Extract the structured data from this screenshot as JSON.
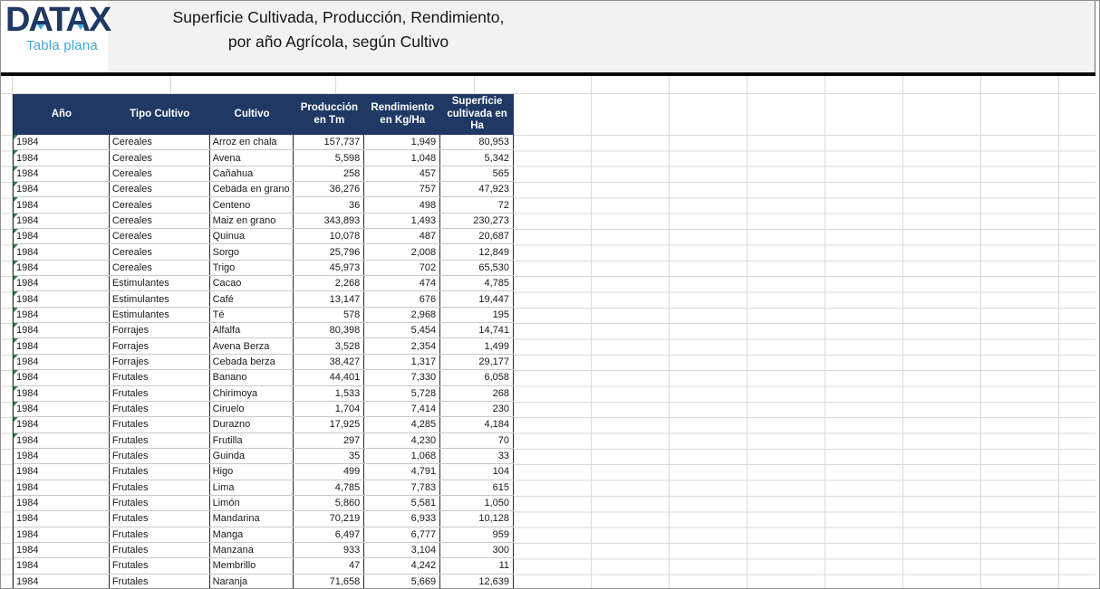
{
  "brand": {
    "logo_text": "DATAX",
    "logo_subtitle": "Tabla plana"
  },
  "title": {
    "line1": "Superficie Cultivada, Producción, Rendimiento,",
    "line2": "por año Agrícola, según Cultivo"
  },
  "colors": {
    "header_bg": "#1F3864",
    "logo_navy": "#1F3864",
    "logo_blue": "#45A7DE",
    "flag_green": "#1E8A3C",
    "gridline": "#D9D9D9",
    "row_separator": "#C9C9C9"
  },
  "table": {
    "columns": [
      "Año",
      "Tipo Cultivo",
      "Cultivo",
      "Producción en Tm",
      "Rendimiento en Kg/Ha",
      "Superficie cultivada en Ha"
    ],
    "rows": [
      {
        "ano": "1984",
        "tipo": "Cereales",
        "cultivo": "Arroz en chala",
        "produccion": "157,737",
        "rendimiento": "1,949",
        "superficie": "80,953",
        "flag": true
      },
      {
        "ano": "1984",
        "tipo": "Cereales",
        "cultivo": "Avena",
        "produccion": "5,598",
        "rendimiento": "1,048",
        "superficie": "5,342",
        "flag": true
      },
      {
        "ano": "1984",
        "tipo": "Cereales",
        "cultivo": "Cañahua",
        "produccion": "258",
        "rendimiento": "457",
        "superficie": "565",
        "flag": true
      },
      {
        "ano": "1984",
        "tipo": "Cereales",
        "cultivo": "Cebada en grano",
        "produccion": "36,276",
        "rendimiento": "757",
        "superficie": "47,923",
        "flag": true
      },
      {
        "ano": "1984",
        "tipo": "Cereales",
        "cultivo": "Centeno",
        "produccion": "36",
        "rendimiento": "498",
        "superficie": "72",
        "flag": true
      },
      {
        "ano": "1984",
        "tipo": "Cereales",
        "cultivo": "Maiz en grano",
        "produccion": "343,893",
        "rendimiento": "1,493",
        "superficie": "230,273",
        "flag": true
      },
      {
        "ano": "1984",
        "tipo": "Cereales",
        "cultivo": "Quinua",
        "produccion": "10,078",
        "rendimiento": "487",
        "superficie": "20,687",
        "flag": true
      },
      {
        "ano": "1984",
        "tipo": "Cereales",
        "cultivo": "Sorgo",
        "produccion": "25,796",
        "rendimiento": "2,008",
        "superficie": "12,849",
        "flag": true
      },
      {
        "ano": "1984",
        "tipo": "Cereales",
        "cultivo": "Trigo",
        "produccion": "45,973",
        "rendimiento": "702",
        "superficie": "65,530",
        "flag": true
      },
      {
        "ano": "1984",
        "tipo": "Estimulantes",
        "cultivo": "Cacao",
        "produccion": "2,268",
        "rendimiento": "474",
        "superficie": "4,785",
        "flag": true
      },
      {
        "ano": "1984",
        "tipo": "Estimulantes",
        "cultivo": "Café",
        "produccion": "13,147",
        "rendimiento": "676",
        "superficie": "19,447",
        "flag": true
      },
      {
        "ano": "1984",
        "tipo": "Estimulantes",
        "cultivo": "Té",
        "produccion": "578",
        "rendimiento": "2,968",
        "superficie": "195",
        "flag": true
      },
      {
        "ano": "1984",
        "tipo": "Forrajes",
        "cultivo": "Alfalfa",
        "produccion": "80,398",
        "rendimiento": "5,454",
        "superficie": "14,741",
        "flag": true
      },
      {
        "ano": "1984",
        "tipo": "Forrajes",
        "cultivo": "Avena Berza",
        "produccion": "3,528",
        "rendimiento": "2,354",
        "superficie": "1,499",
        "flag": true
      },
      {
        "ano": "1984",
        "tipo": "Forrajes",
        "cultivo": "Cebada berza",
        "produccion": "38,427",
        "rendimiento": "1,317",
        "superficie": "29,177",
        "flag": true
      },
      {
        "ano": "1984",
        "tipo": "Frutales",
        "cultivo": "Banano",
        "produccion": "44,401",
        "rendimiento": "7,330",
        "superficie": "6,058",
        "flag": true
      },
      {
        "ano": "1984",
        "tipo": "Frutales",
        "cultivo": "Chirimoya",
        "produccion": "1,533",
        "rendimiento": "5,728",
        "superficie": "268",
        "flag": true
      },
      {
        "ano": "1984",
        "tipo": "Frutales",
        "cultivo": "Ciruelo",
        "produccion": "1,704",
        "rendimiento": "7,414",
        "superficie": "230",
        "flag": true
      },
      {
        "ano": "1984",
        "tipo": "Frutales",
        "cultivo": "Durazno",
        "produccion": "17,925",
        "rendimiento": "4,285",
        "superficie": "4,184",
        "flag": true
      },
      {
        "ano": "1984",
        "tipo": "Frutales",
        "cultivo": "Frutilla",
        "produccion": "297",
        "rendimiento": "4,230",
        "superficie": "70",
        "flag": true
      },
      {
        "ano": "1984",
        "tipo": "Frutales",
        "cultivo": "Guinda",
        "produccion": "35",
        "rendimiento": "1,068",
        "superficie": "33",
        "flag": false
      },
      {
        "ano": "1984",
        "tipo": "Frutales",
        "cultivo": "Higo",
        "produccion": "499",
        "rendimiento": "4,791",
        "superficie": "104",
        "flag": false
      },
      {
        "ano": "1984",
        "tipo": "Frutales",
        "cultivo": "Lima",
        "produccion": "4,785",
        "rendimiento": "7,783",
        "superficie": "615",
        "flag": false
      },
      {
        "ano": "1984",
        "tipo": "Frutales",
        "cultivo": "Limón",
        "produccion": "5,860",
        "rendimiento": "5,581",
        "superficie": "1,050",
        "flag": false
      },
      {
        "ano": "1984",
        "tipo": "Frutales",
        "cultivo": "Mandarina",
        "produccion": "70,219",
        "rendimiento": "6,933",
        "superficie": "10,128",
        "flag": false
      },
      {
        "ano": "1984",
        "tipo": "Frutales",
        "cultivo": "Manga",
        "produccion": "6,497",
        "rendimiento": "6,777",
        "superficie": "959",
        "flag": false
      },
      {
        "ano": "1984",
        "tipo": "Frutales",
        "cultivo": "Manzana",
        "produccion": "933",
        "rendimiento": "3,104",
        "superficie": "300",
        "flag": false
      },
      {
        "ano": "1984",
        "tipo": "Frutales",
        "cultivo": "Membrillo",
        "produccion": "47",
        "rendimiento": "4,242",
        "superficie": "11",
        "flag": false
      },
      {
        "ano": "1984",
        "tipo": "Frutales",
        "cultivo": "Naranja",
        "produccion": "71,658",
        "rendimiento": "5,669",
        "superficie": "12,639",
        "flag": false
      }
    ]
  }
}
